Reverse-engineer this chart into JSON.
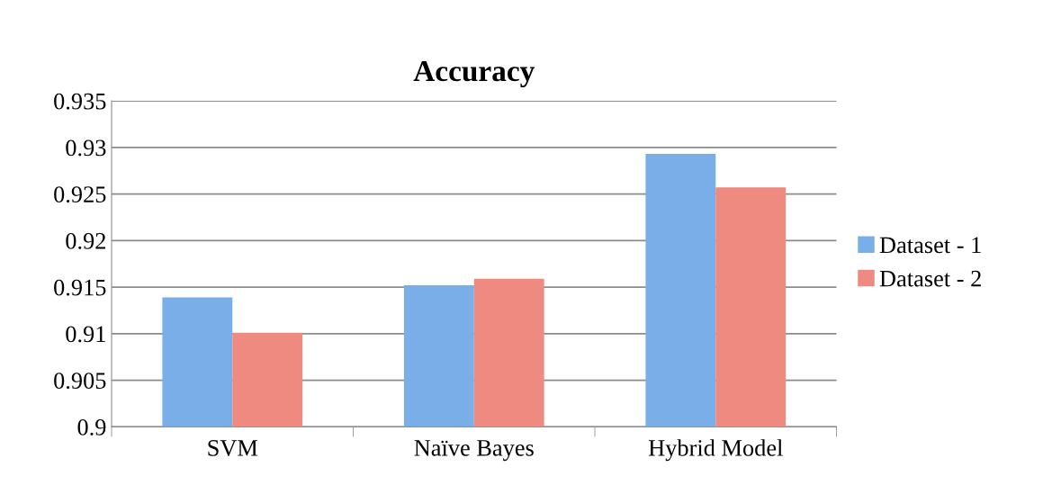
{
  "chart_data": {
    "type": "bar",
    "title": "Accuracy",
    "categories": [
      "SVM",
      "Naïve Bayes",
      "Hybrid Model"
    ],
    "series": [
      {
        "name": "Dataset - 1",
        "color": "#7aaee8",
        "values": [
          0.9139,
          0.9152,
          0.9293
        ]
      },
      {
        "name": "Dataset - 2",
        "color": "#ee8a80",
        "values": [
          0.9101,
          0.9159,
          0.9257
        ]
      }
    ],
    "ylim": [
      0.9,
      0.935
    ],
    "yticks": [
      {
        "value": 0.9,
        "label": "0.9"
      },
      0.905,
      0.91,
      0.915,
      0.92,
      0.925,
      0.93,
      0.935
    ],
    "grid": "y",
    "legend": "right"
  }
}
